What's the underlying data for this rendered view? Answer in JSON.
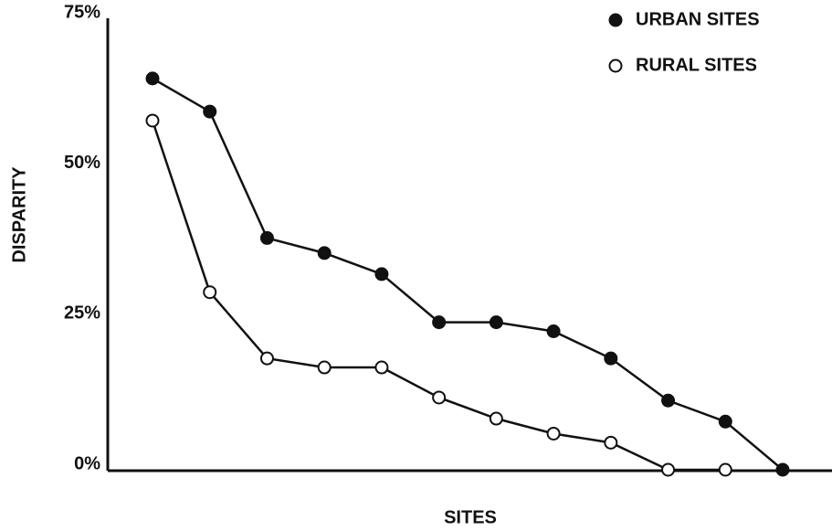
{
  "chart_data": {
    "type": "line",
    "xlabel": "SITES",
    "ylabel": "DISPARITY",
    "categories": [
      null,
      null,
      null,
      null,
      null,
      null,
      null,
      null,
      null,
      null,
      null,
      null
    ],
    "series": [
      {
        "name": "URBAN SITES",
        "color": "#111111",
        "marker": "filled",
        "values": [
          65,
          59.5,
          38.5,
          36,
          32.5,
          24.5,
          24.5,
          23,
          18.5,
          11.5,
          8,
          0
        ]
      },
      {
        "name": "RURAL SITES",
        "color": "#111111",
        "marker": "open",
        "values": [
          58,
          29.5,
          18.5,
          17,
          17,
          12,
          8.5,
          6,
          4.5,
          0,
          0,
          null
        ]
      }
    ],
    "ylim": [
      0,
      75
    ],
    "yticks": [
      {
        "value": 0,
        "label": "0%"
      },
      {
        "value": 25,
        "label": "25%"
      },
      {
        "value": 50,
        "label": "50%"
      },
      {
        "value": 75,
        "label": "75%"
      }
    ],
    "grid": false,
    "legend": "upper right"
  }
}
